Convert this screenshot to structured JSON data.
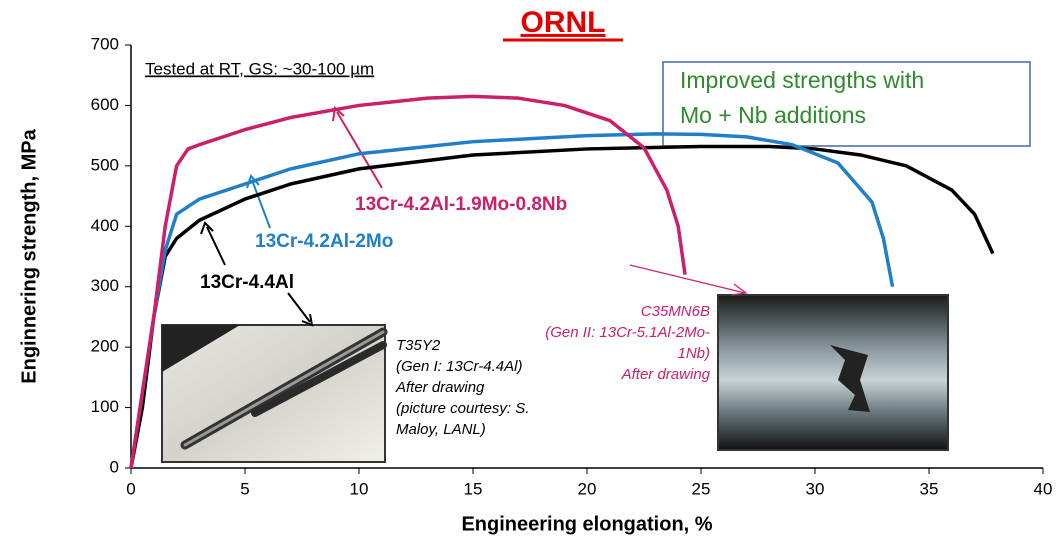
{
  "chart_data": {
    "type": "line",
    "title": "ORNL",
    "x_label": "Engineering elongation, %",
    "y_label": "Enginnering strength, MPa",
    "xlim": [
      0,
      40
    ],
    "ylim": [
      0,
      700
    ],
    "xticks": [
      0,
      5,
      10,
      15,
      20,
      25,
      30,
      35,
      40
    ],
    "yticks": [
      0,
      100,
      200,
      300,
      400,
      500,
      600,
      700
    ],
    "series": [
      {
        "name": "13Cr-4.4Al",
        "color": "#000000",
        "x": [
          0,
          0.5,
          1,
          1.5,
          2,
          3,
          5,
          7,
          10,
          15,
          20,
          25,
          28,
          30,
          32,
          34,
          36,
          37,
          37.8
        ],
        "values": [
          0,
          100,
          250,
          350,
          380,
          410,
          445,
          470,
          495,
          518,
          528,
          532,
          532,
          528,
          518,
          500,
          460,
          420,
          355
        ]
      },
      {
        "name": "13Cr-4.2Al-2Mo",
        "color": "#1f7fc8",
        "x": [
          0,
          1,
          1.5,
          2,
          3,
          5,
          7,
          10,
          15,
          20,
          23,
          25,
          27,
          29,
          31,
          32.5,
          33,
          33.4
        ],
        "values": [
          0,
          250,
          360,
          420,
          445,
          470,
          495,
          520,
          540,
          550,
          553,
          552,
          548,
          535,
          505,
          440,
          380,
          300
        ]
      },
      {
        "name": "13Cr-4.2Al-1.9Mo-0.8Nb",
        "color": "#cc1f6b",
        "x": [
          0,
          1,
          1.5,
          2,
          2.5,
          3,
          5,
          7,
          10,
          13,
          15,
          17,
          19,
          21,
          22.5,
          23.5,
          24,
          24.3
        ],
        "values": [
          0,
          250,
          400,
          500,
          528,
          535,
          560,
          580,
          600,
          612,
          615,
          612,
          600,
          575,
          530,
          460,
          400,
          320
        ]
      }
    ],
    "annotations": [
      {
        "lines": [
          "Tested at RT, GS: ~30-100 µm"
        ]
      },
      {
        "lines": [
          "Improved strengths with",
          "Mo + Nb additions"
        ]
      },
      {
        "lines": [
          "T35Y2",
          "(Gen I: 13Cr-4.4Al)",
          "After drawing",
          "(picture courtesy: S.",
          "Maloy, LANL)"
        ]
      },
      {
        "lines": [
          "C35MN6B",
          "(Gen II: 13Cr-5.1Al-2Mo-",
          "1Nb)",
          "After drawing"
        ]
      }
    ]
  }
}
